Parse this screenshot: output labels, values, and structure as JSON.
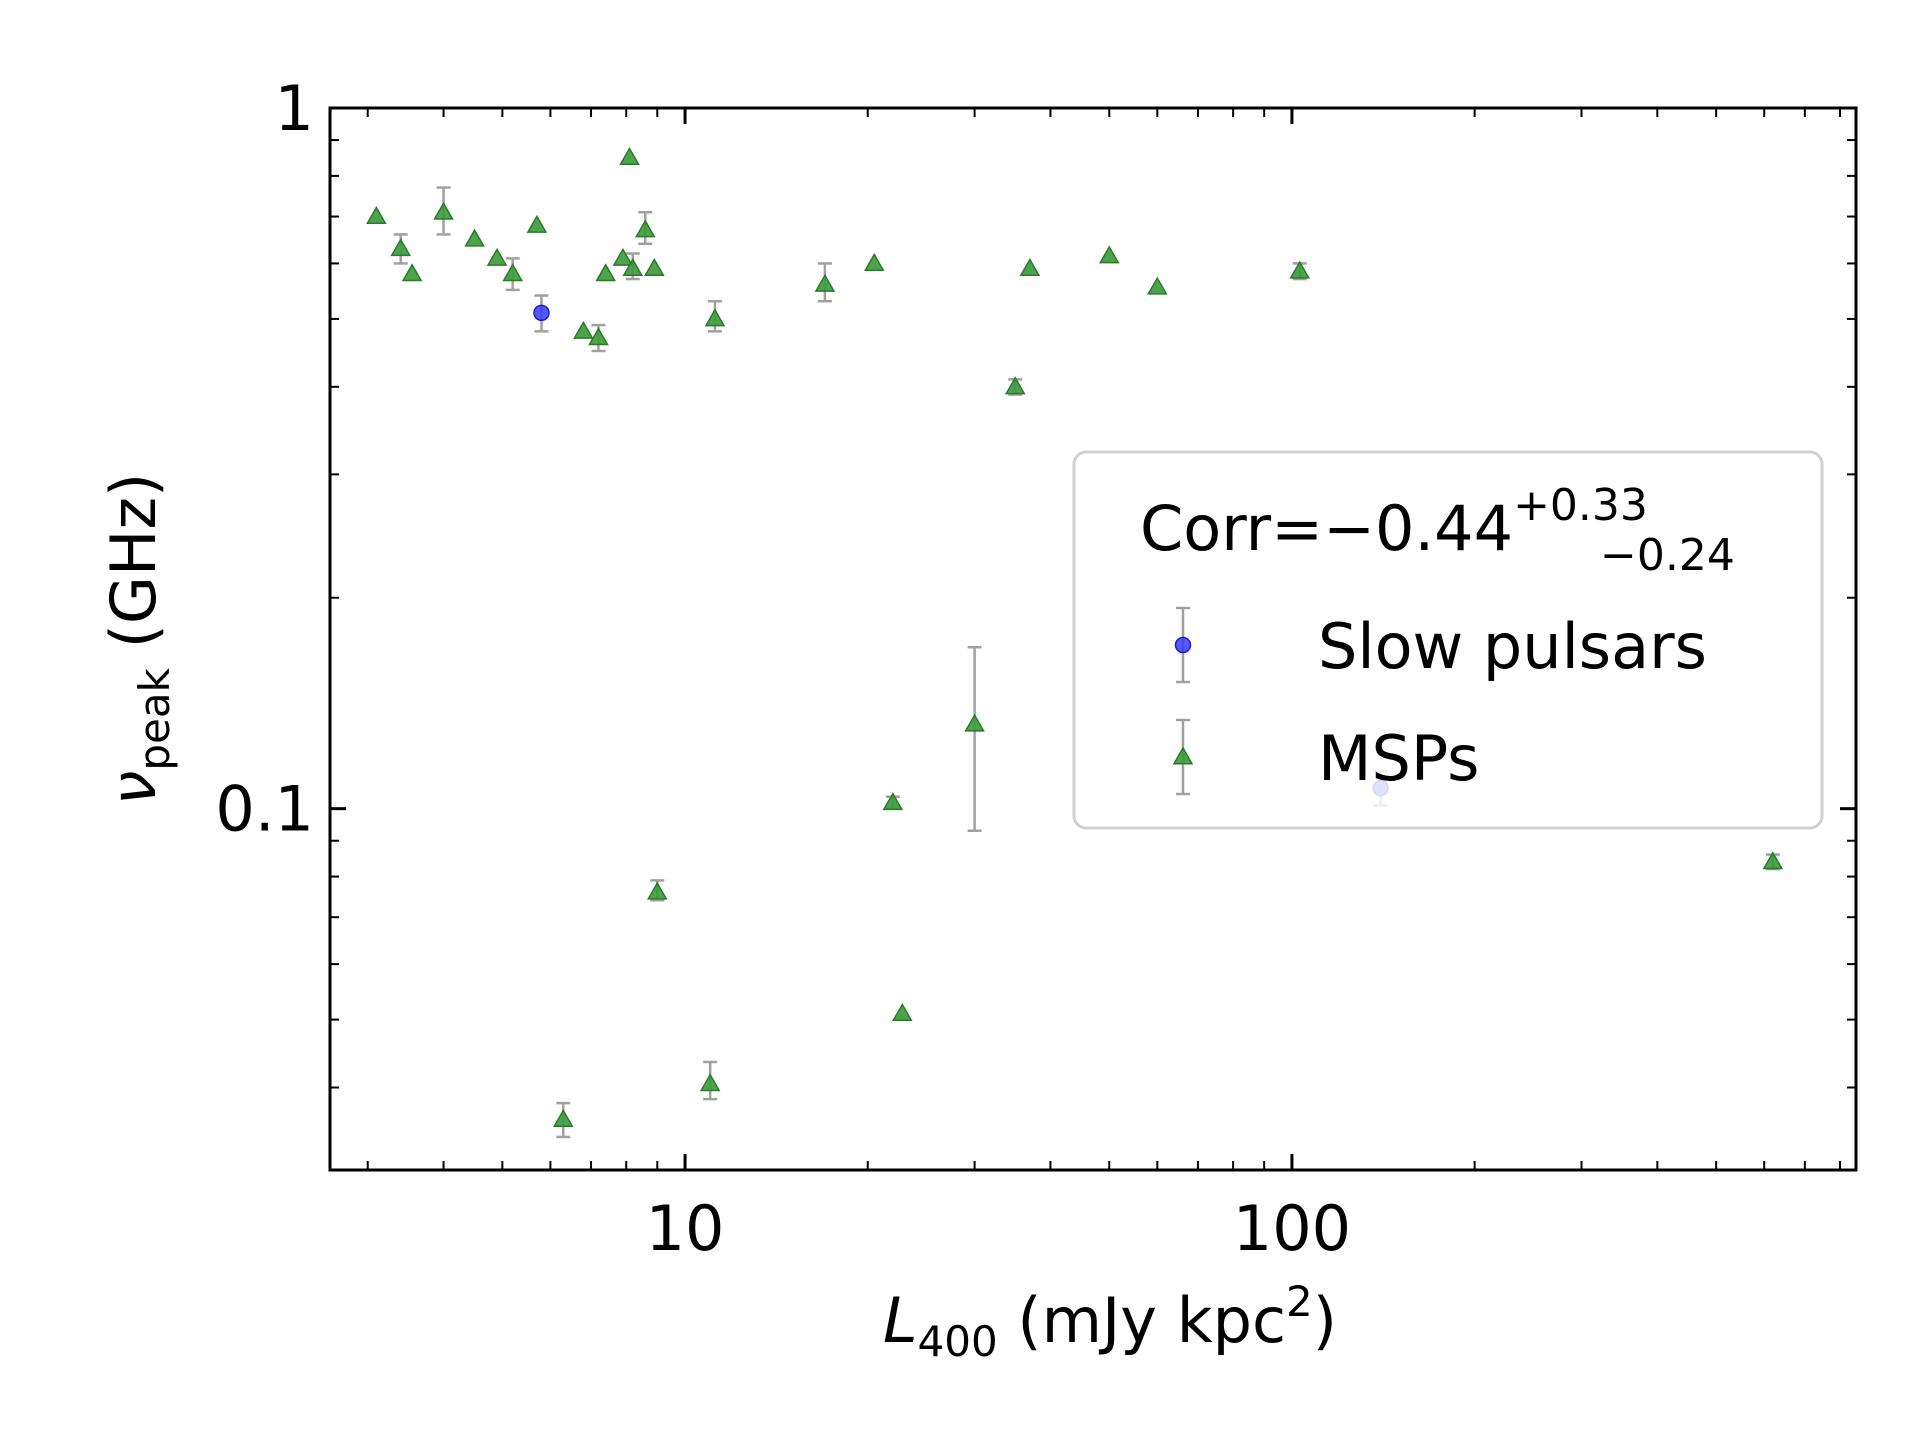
{
  "chart_data": {
    "type": "scatter",
    "x_scale": "log",
    "y_scale": "log",
    "xlim": [
      2.6,
      850
    ],
    "ylim": [
      0.0305,
      1.0
    ],
    "x_ticks": [
      {
        "value": 10,
        "label": "10"
      },
      {
        "value": 100,
        "label": "100"
      }
    ],
    "y_ticks": [
      {
        "value": 0.1,
        "label": "0.1"
      },
      {
        "value": 1,
        "label": "1"
      }
    ],
    "xlabel": {
      "italic": "L",
      "sub": "400",
      "rest": " (mJy kpc",
      "sup": "2",
      "close": ")"
    },
    "ylabel": {
      "main": "ν",
      "sub": "peak",
      "rest": " (GHz)"
    },
    "legend": {
      "position": "center-right",
      "title_main": "Corr=−0.44",
      "title_sup": "+0.33",
      "title_sub": "−0.24",
      "entries": [
        "Slow pulsars",
        "MSPs"
      ]
    },
    "colors": {
      "slow": "#3a3aff",
      "slow_edge": "#2020c0",
      "msp": "#3a9a3a",
      "msp_edge": "#2a7a2a",
      "errorbar": "#a0a0a0"
    },
    "series": [
      {
        "name": "Slow pulsars",
        "marker": "circle",
        "points": [
          {
            "x": 5.8,
            "y": 0.51,
            "lo": 0.48,
            "hi": 0.54
          },
          {
            "x": 140,
            "y": 0.107,
            "lo": 0.101,
            "hi": 0.113
          }
        ]
      },
      {
        "name": "MSPs",
        "marker": "triangle",
        "points": [
          {
            "x": 3.1,
            "y": 0.7
          },
          {
            "x": 3.4,
            "y": 0.63,
            "lo": 0.6,
            "hi": 0.66
          },
          {
            "x": 3.55,
            "y": 0.58
          },
          {
            "x": 4.0,
            "y": 0.71,
            "lo": 0.66,
            "hi": 0.77
          },
          {
            "x": 4.5,
            "y": 0.65
          },
          {
            "x": 4.9,
            "y": 0.61
          },
          {
            "x": 5.2,
            "y": 0.58,
            "lo": 0.55,
            "hi": 0.61
          },
          {
            "x": 5.7,
            "y": 0.68
          },
          {
            "x": 6.3,
            "y": 0.036,
            "lo": 0.034,
            "hi": 0.038
          },
          {
            "x": 6.8,
            "y": 0.48
          },
          {
            "x": 7.2,
            "y": 0.47,
            "lo": 0.45,
            "hi": 0.49
          },
          {
            "x": 7.4,
            "y": 0.58
          },
          {
            "x": 7.9,
            "y": 0.61
          },
          {
            "x": 8.1,
            "y": 0.85
          },
          {
            "x": 8.2,
            "y": 0.59,
            "lo": 0.57,
            "hi": 0.62
          },
          {
            "x": 8.6,
            "y": 0.67,
            "lo": 0.64,
            "hi": 0.71
          },
          {
            "x": 8.9,
            "y": 0.59
          },
          {
            "x": 9.0,
            "y": 0.076,
            "lo": 0.074,
            "hi": 0.079
          },
          {
            "x": 11.0,
            "y": 0.0405,
            "lo": 0.0385,
            "hi": 0.0435
          },
          {
            "x": 11.2,
            "y": 0.5,
            "lo": 0.48,
            "hi": 0.53
          },
          {
            "x": 17.0,
            "y": 0.56,
            "lo": 0.53,
            "hi": 0.6
          },
          {
            "x": 20.5,
            "y": 0.6
          },
          {
            "x": 22.0,
            "y": 0.102,
            "lo": 0.1,
            "hi": 0.104
          },
          {
            "x": 22.8,
            "y": 0.051
          },
          {
            "x": 30.0,
            "y": 0.132,
            "lo": 0.093,
            "hi": 0.17
          },
          {
            "x": 35.0,
            "y": 0.4,
            "lo": 0.39,
            "hi": 0.41
          },
          {
            "x": 37.0,
            "y": 0.59
          },
          {
            "x": 50.0,
            "y": 0.615
          },
          {
            "x": 60.0,
            "y": 0.555
          },
          {
            "x": 103.0,
            "y": 0.585,
            "lo": 0.57,
            "hi": 0.6
          },
          {
            "x": 620.0,
            "y": 0.084,
            "lo": 0.082,
            "hi": 0.086
          }
        ]
      }
    ]
  }
}
